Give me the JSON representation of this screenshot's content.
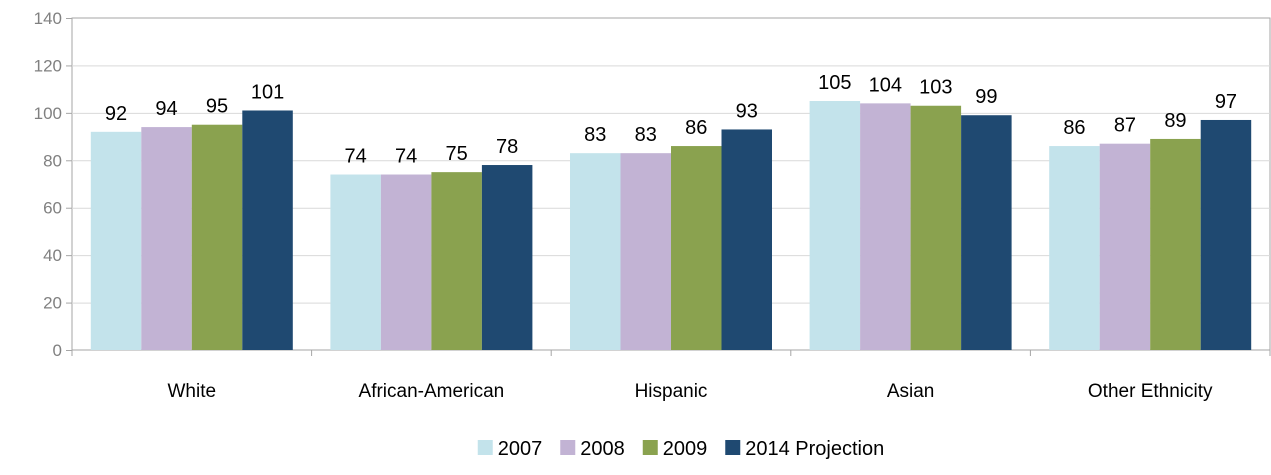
{
  "chart_data": {
    "type": "bar",
    "title": "",
    "xlabel": "",
    "ylabel": "",
    "ylim": [
      0,
      140
    ],
    "yticks": [
      0,
      20,
      40,
      60,
      80,
      100,
      120,
      140
    ],
    "grid": true,
    "legend_position": "bottom",
    "categories": [
      "White",
      "African-American",
      "Hispanic",
      "Asian",
      "Other Ethnicity"
    ],
    "series": [
      {
        "name": "2007",
        "color": "#c3e3eb",
        "values": [
          92,
          74,
          83,
          105,
          86
        ]
      },
      {
        "name": "2008",
        "color": "#c2b3d4",
        "values": [
          94,
          74,
          83,
          104,
          87
        ]
      },
      {
        "name": "2009",
        "color": "#8aa24f",
        "values": [
          95,
          75,
          86,
          103,
          89
        ]
      },
      {
        "name": "2014 Projection",
        "color": "#1f4971",
        "values": [
          101,
          78,
          93,
          99,
          97
        ]
      }
    ]
  }
}
